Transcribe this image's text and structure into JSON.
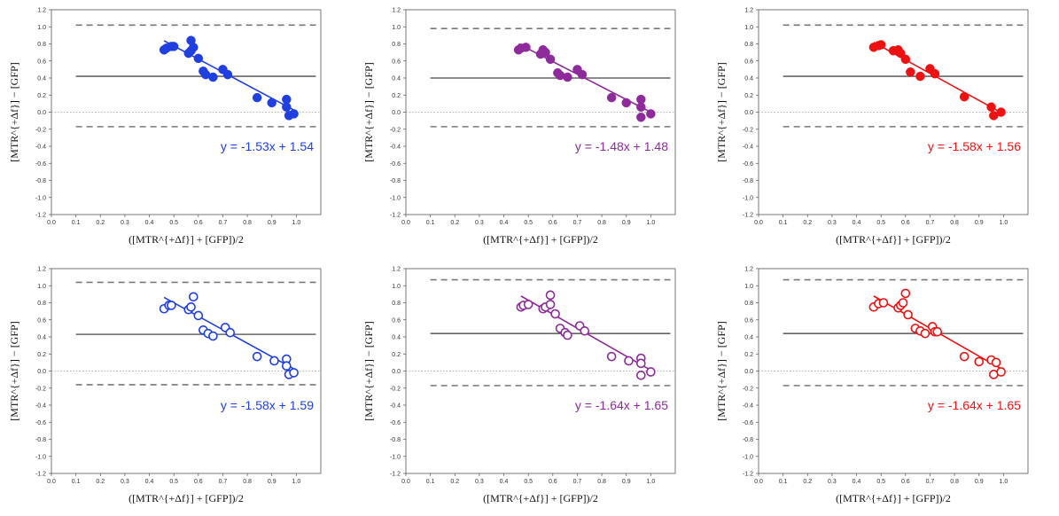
{
  "figure": {
    "xlabel": "([MTR^{+Δf}] + [GFP])/2",
    "ylabel": "[MTR^{+Δf}] − [GFP]"
  },
  "chart_data": [
    {
      "type": "scatter",
      "marker": "filled",
      "color": "#1f3fe0",
      "xlim": [
        0.0,
        1.1
      ],
      "ylim": [
        -1.2,
        1.2
      ],
      "xticks": [
        "0.0",
        "0.1",
        "0.2",
        "0.3",
        "0.4",
        "0.5",
        "0.6",
        "0.7",
        "0.8",
        "0.9",
        "1.0"
      ],
      "yticks": [
        "-1.2",
        "-1.0",
        "-0.8",
        "-0.6",
        "-0.4",
        "-0.2",
        "0.0",
        "0.2",
        "0.4",
        "0.6",
        "0.8",
        "1.0",
        "1.2"
      ],
      "mean_line": 0.42,
      "loa_upper": 1.02,
      "loa_lower": -0.17,
      "fit": {
        "slope": -1.53,
        "intercept": 1.54,
        "x_range": [
          0.46,
          0.99
        ]
      },
      "equation": "y = -1.53x + 1.54",
      "points": [
        [
          0.46,
          0.73
        ],
        [
          0.47,
          0.75
        ],
        [
          0.49,
          0.77
        ],
        [
          0.5,
          0.77
        ],
        [
          0.56,
          0.69
        ],
        [
          0.57,
          0.84
        ],
        [
          0.57,
          0.72
        ],
        [
          0.58,
          0.76
        ],
        [
          0.6,
          0.63
        ],
        [
          0.62,
          0.48
        ],
        [
          0.63,
          0.44
        ],
        [
          0.66,
          0.41
        ],
        [
          0.7,
          0.5
        ],
        [
          0.72,
          0.44
        ],
        [
          0.84,
          0.17
        ],
        [
          0.9,
          0.11
        ],
        [
          0.96,
          0.15
        ],
        [
          0.96,
          0.06
        ],
        [
          0.97,
          -0.04
        ],
        [
          0.99,
          -0.02
        ]
      ]
    },
    {
      "type": "scatter",
      "marker": "filled",
      "color": "#8e2a9b",
      "xlim": [
        0.0,
        1.1
      ],
      "ylim": [
        -1.2,
        1.2
      ],
      "xticks": [
        "0.0",
        "0.1",
        "0.2",
        "0.3",
        "0.4",
        "0.5",
        "0.6",
        "0.7",
        "0.8",
        "0.9",
        "1.0"
      ],
      "yticks": [
        "-1.2",
        "-1.0",
        "-0.8",
        "-0.6",
        "-0.4",
        "-0.2",
        "0.0",
        "0.2",
        "0.4",
        "0.6",
        "0.8",
        "1.0",
        "1.2"
      ],
      "mean_line": 0.4,
      "loa_upper": 0.98,
      "loa_lower": -0.17,
      "fit": {
        "slope": -1.48,
        "intercept": 1.48,
        "x_range": [
          0.46,
          1.0
        ]
      },
      "equation": "y = -1.48x + 1.48",
      "points": [
        [
          0.46,
          0.73
        ],
        [
          0.47,
          0.75
        ],
        [
          0.49,
          0.76
        ],
        [
          0.55,
          0.68
        ],
        [
          0.56,
          0.73
        ],
        [
          0.57,
          0.7
        ],
        [
          0.59,
          0.62
        ],
        [
          0.62,
          0.46
        ],
        [
          0.63,
          0.43
        ],
        [
          0.66,
          0.41
        ],
        [
          0.7,
          0.5
        ],
        [
          0.72,
          0.44
        ],
        [
          0.84,
          0.17
        ],
        [
          0.9,
          0.11
        ],
        [
          0.96,
          0.15
        ],
        [
          0.96,
          0.06
        ],
        [
          0.96,
          -0.06
        ],
        [
          1.0,
          -0.02
        ]
      ]
    },
    {
      "type": "scatter",
      "marker": "filled",
      "color": "#ee1111",
      "xlim": [
        0.0,
        1.1
      ],
      "ylim": [
        -1.2,
        1.2
      ],
      "xticks": [
        "0.0",
        "0.1",
        "0.2",
        "0.3",
        "0.4",
        "0.5",
        "0.6",
        "0.7",
        "0.8",
        "0.9",
        "1.0"
      ],
      "yticks": [
        "-1.2",
        "-1.0",
        "-0.8",
        "-0.6",
        "-0.4",
        "-0.2",
        "0.0",
        "0.2",
        "0.4",
        "0.6",
        "0.8",
        "1.0",
        "1.2"
      ],
      "mean_line": 0.42,
      "loa_upper": 1.02,
      "loa_lower": -0.17,
      "fit": {
        "slope": -1.58,
        "intercept": 1.56,
        "x_range": [
          0.47,
          0.99
        ]
      },
      "equation": "y = -1.58x + 1.56",
      "points": [
        [
          0.47,
          0.76
        ],
        [
          0.49,
          0.78
        ],
        [
          0.5,
          0.79
        ],
        [
          0.55,
          0.72
        ],
        [
          0.57,
          0.73
        ],
        [
          0.58,
          0.69
        ],
        [
          0.6,
          0.62
        ],
        [
          0.62,
          0.47
        ],
        [
          0.66,
          0.42
        ],
        [
          0.7,
          0.51
        ],
        [
          0.72,
          0.45
        ],
        [
          0.84,
          0.18
        ],
        [
          0.95,
          0.06
        ],
        [
          0.96,
          -0.04
        ],
        [
          0.99,
          0.0
        ]
      ]
    },
    {
      "type": "scatter",
      "marker": "open",
      "color": "#1f3fe0",
      "xlim": [
        0.0,
        1.1
      ],
      "ylim": [
        -1.2,
        1.2
      ],
      "xticks": [
        "0.0",
        "0.1",
        "0.2",
        "0.3",
        "0.4",
        "0.5",
        "0.6",
        "0.7",
        "0.8",
        "0.9",
        "1.0"
      ],
      "yticks": [
        "-1.2",
        "-1.0",
        "-0.8",
        "-0.6",
        "-0.4",
        "-0.2",
        "0.0",
        "0.2",
        "0.4",
        "0.6",
        "0.8",
        "1.0",
        "1.2"
      ],
      "mean_line": 0.43,
      "loa_upper": 1.04,
      "loa_lower": -0.16,
      "fit": {
        "slope": -1.58,
        "intercept": 1.59,
        "x_range": [
          0.46,
          0.99
        ]
      },
      "equation": "y = -1.58x + 1.59",
      "points": [
        [
          0.46,
          0.73
        ],
        [
          0.48,
          0.77
        ],
        [
          0.49,
          0.77
        ],
        [
          0.56,
          0.72
        ],
        [
          0.57,
          0.75
        ],
        [
          0.58,
          0.87
        ],
        [
          0.6,
          0.65
        ],
        [
          0.62,
          0.48
        ],
        [
          0.64,
          0.44
        ],
        [
          0.66,
          0.41
        ],
        [
          0.71,
          0.51
        ],
        [
          0.73,
          0.45
        ],
        [
          0.84,
          0.17
        ],
        [
          0.91,
          0.12
        ],
        [
          0.96,
          0.14
        ],
        [
          0.96,
          0.06
        ],
        [
          0.97,
          -0.04
        ],
        [
          0.99,
          -0.02
        ]
      ]
    },
    {
      "type": "scatter",
      "marker": "open",
      "color": "#8e2a9b",
      "xlim": [
        0.0,
        1.1
      ],
      "ylim": [
        -1.2,
        1.2
      ],
      "xticks": [
        "0.0",
        "0.1",
        "0.2",
        "0.3",
        "0.4",
        "0.5",
        "0.6",
        "0.7",
        "0.8",
        "0.9",
        "1.0"
      ],
      "yticks": [
        "-1.2",
        "-1.0",
        "-0.8",
        "-0.6",
        "-0.4",
        "-0.2",
        "0.0",
        "0.2",
        "0.4",
        "0.6",
        "0.8",
        "1.0",
        "1.2"
      ],
      "mean_line": 0.44,
      "loa_upper": 1.07,
      "loa_lower": -0.17,
      "fit": {
        "slope": -1.64,
        "intercept": 1.65,
        "x_range": [
          0.47,
          1.0
        ]
      },
      "equation": "y = -1.64x + 1.65",
      "points": [
        [
          0.47,
          0.75
        ],
        [
          0.48,
          0.77
        ],
        [
          0.5,
          0.78
        ],
        [
          0.56,
          0.73
        ],
        [
          0.57,
          0.75
        ],
        [
          0.59,
          0.89
        ],
        [
          0.59,
          0.78
        ],
        [
          0.61,
          0.67
        ],
        [
          0.63,
          0.5
        ],
        [
          0.65,
          0.45
        ],
        [
          0.66,
          0.42
        ],
        [
          0.71,
          0.53
        ],
        [
          0.73,
          0.47
        ],
        [
          0.84,
          0.17
        ],
        [
          0.91,
          0.12
        ],
        [
          0.96,
          0.15
        ],
        [
          0.96,
          0.09
        ],
        [
          0.96,
          -0.05
        ],
        [
          1.0,
          -0.01
        ]
      ]
    },
    {
      "type": "scatter",
      "marker": "open",
      "color": "#ee1111",
      "xlim": [
        0.0,
        1.1
      ],
      "ylim": [
        -1.2,
        1.2
      ],
      "xticks": [
        "0.0",
        "0.1",
        "0.2",
        "0.3",
        "0.4",
        "0.5",
        "0.6",
        "0.7",
        "0.8",
        "0.9",
        "1.0"
      ],
      "yticks": [
        "-1.2",
        "-1.0",
        "-0.8",
        "-0.6",
        "-0.4",
        "-0.2",
        "0.0",
        "0.2",
        "0.4",
        "0.6",
        "0.8",
        "1.0",
        "1.2"
      ],
      "mean_line": 0.44,
      "loa_upper": 1.07,
      "loa_lower": -0.17,
      "fit": {
        "slope": -1.64,
        "intercept": 1.65,
        "x_range": [
          0.47,
          0.99
        ]
      },
      "equation": "y = -1.64x + 1.65",
      "points": [
        [
          0.47,
          0.75
        ],
        [
          0.49,
          0.79
        ],
        [
          0.51,
          0.8
        ],
        [
          0.57,
          0.74
        ],
        [
          0.58,
          0.77
        ],
        [
          0.59,
          0.8
        ],
        [
          0.6,
          0.91
        ],
        [
          0.61,
          0.66
        ],
        [
          0.64,
          0.5
        ],
        [
          0.66,
          0.47
        ],
        [
          0.68,
          0.44
        ],
        [
          0.71,
          0.52
        ],
        [
          0.72,
          0.46
        ],
        [
          0.73,
          0.46
        ],
        [
          0.84,
          0.17
        ],
        [
          0.9,
          0.11
        ],
        [
          0.95,
          0.13
        ],
        [
          0.96,
          -0.04
        ],
        [
          0.97,
          0.1
        ],
        [
          0.99,
          -0.01
        ]
      ]
    }
  ]
}
